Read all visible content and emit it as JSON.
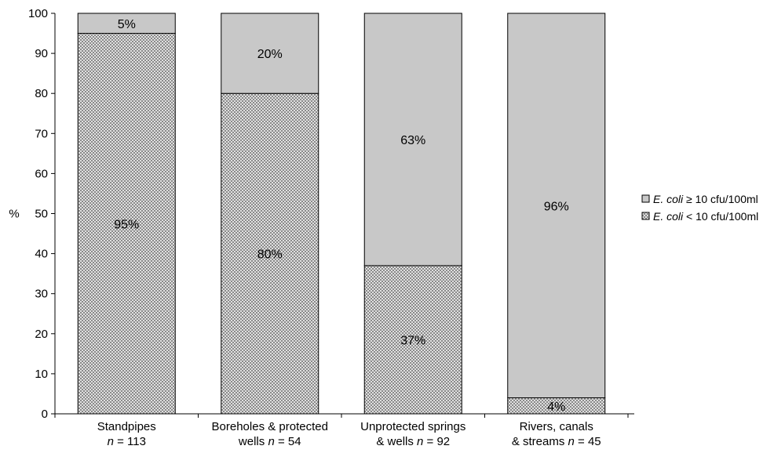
{
  "chart_data": {
    "type": "bar",
    "stacked": true,
    "title": "",
    "ylabel": "%",
    "xlabel": "",
    "ylim": [
      0,
      100
    ],
    "yticks": [
      0,
      10,
      20,
      30,
      40,
      50,
      60,
      70,
      80,
      90,
      100
    ],
    "grid": false,
    "legend_position": "right",
    "categories": [
      {
        "line1": "Standpipes",
        "line2_italic": "n",
        "line2_rest": " = 113"
      },
      {
        "line1": "Boreholes & protected",
        "line2_prefix": "wells ",
        "line2_italic": "n",
        "line2_rest": " = 54"
      },
      {
        "line1": "Unprotected springs",
        "line2_prefix": "& wells ",
        "line2_italic": "n",
        "line2_rest": " = 92"
      },
      {
        "line1": "Rivers, canals",
        "line2_prefix": "& streams ",
        "line2_italic": "n",
        "line2_rest": " = 45"
      }
    ],
    "series": [
      {
        "name_italic": "E. coli",
        "name_rest": " < 10 cfu/100ml",
        "pattern": "dotted",
        "values": [
          95,
          80,
          37,
          4
        ],
        "labels": [
          "95%",
          "80%",
          "37%",
          "4%"
        ]
      },
      {
        "name_italic": "E. coli",
        "name_rest": " ≥ 10 cfu/100ml",
        "pattern": "solid-grey",
        "values": [
          5,
          20,
          63,
          96
        ],
        "labels": [
          "5%",
          "20%",
          "63%",
          "96%"
        ]
      }
    ],
    "colors": {
      "solid_fill": "#c8c8c8",
      "dotted_fill": "#e0e0e0",
      "dot_color": "#8a8a8a",
      "outline": "#000000"
    }
  }
}
